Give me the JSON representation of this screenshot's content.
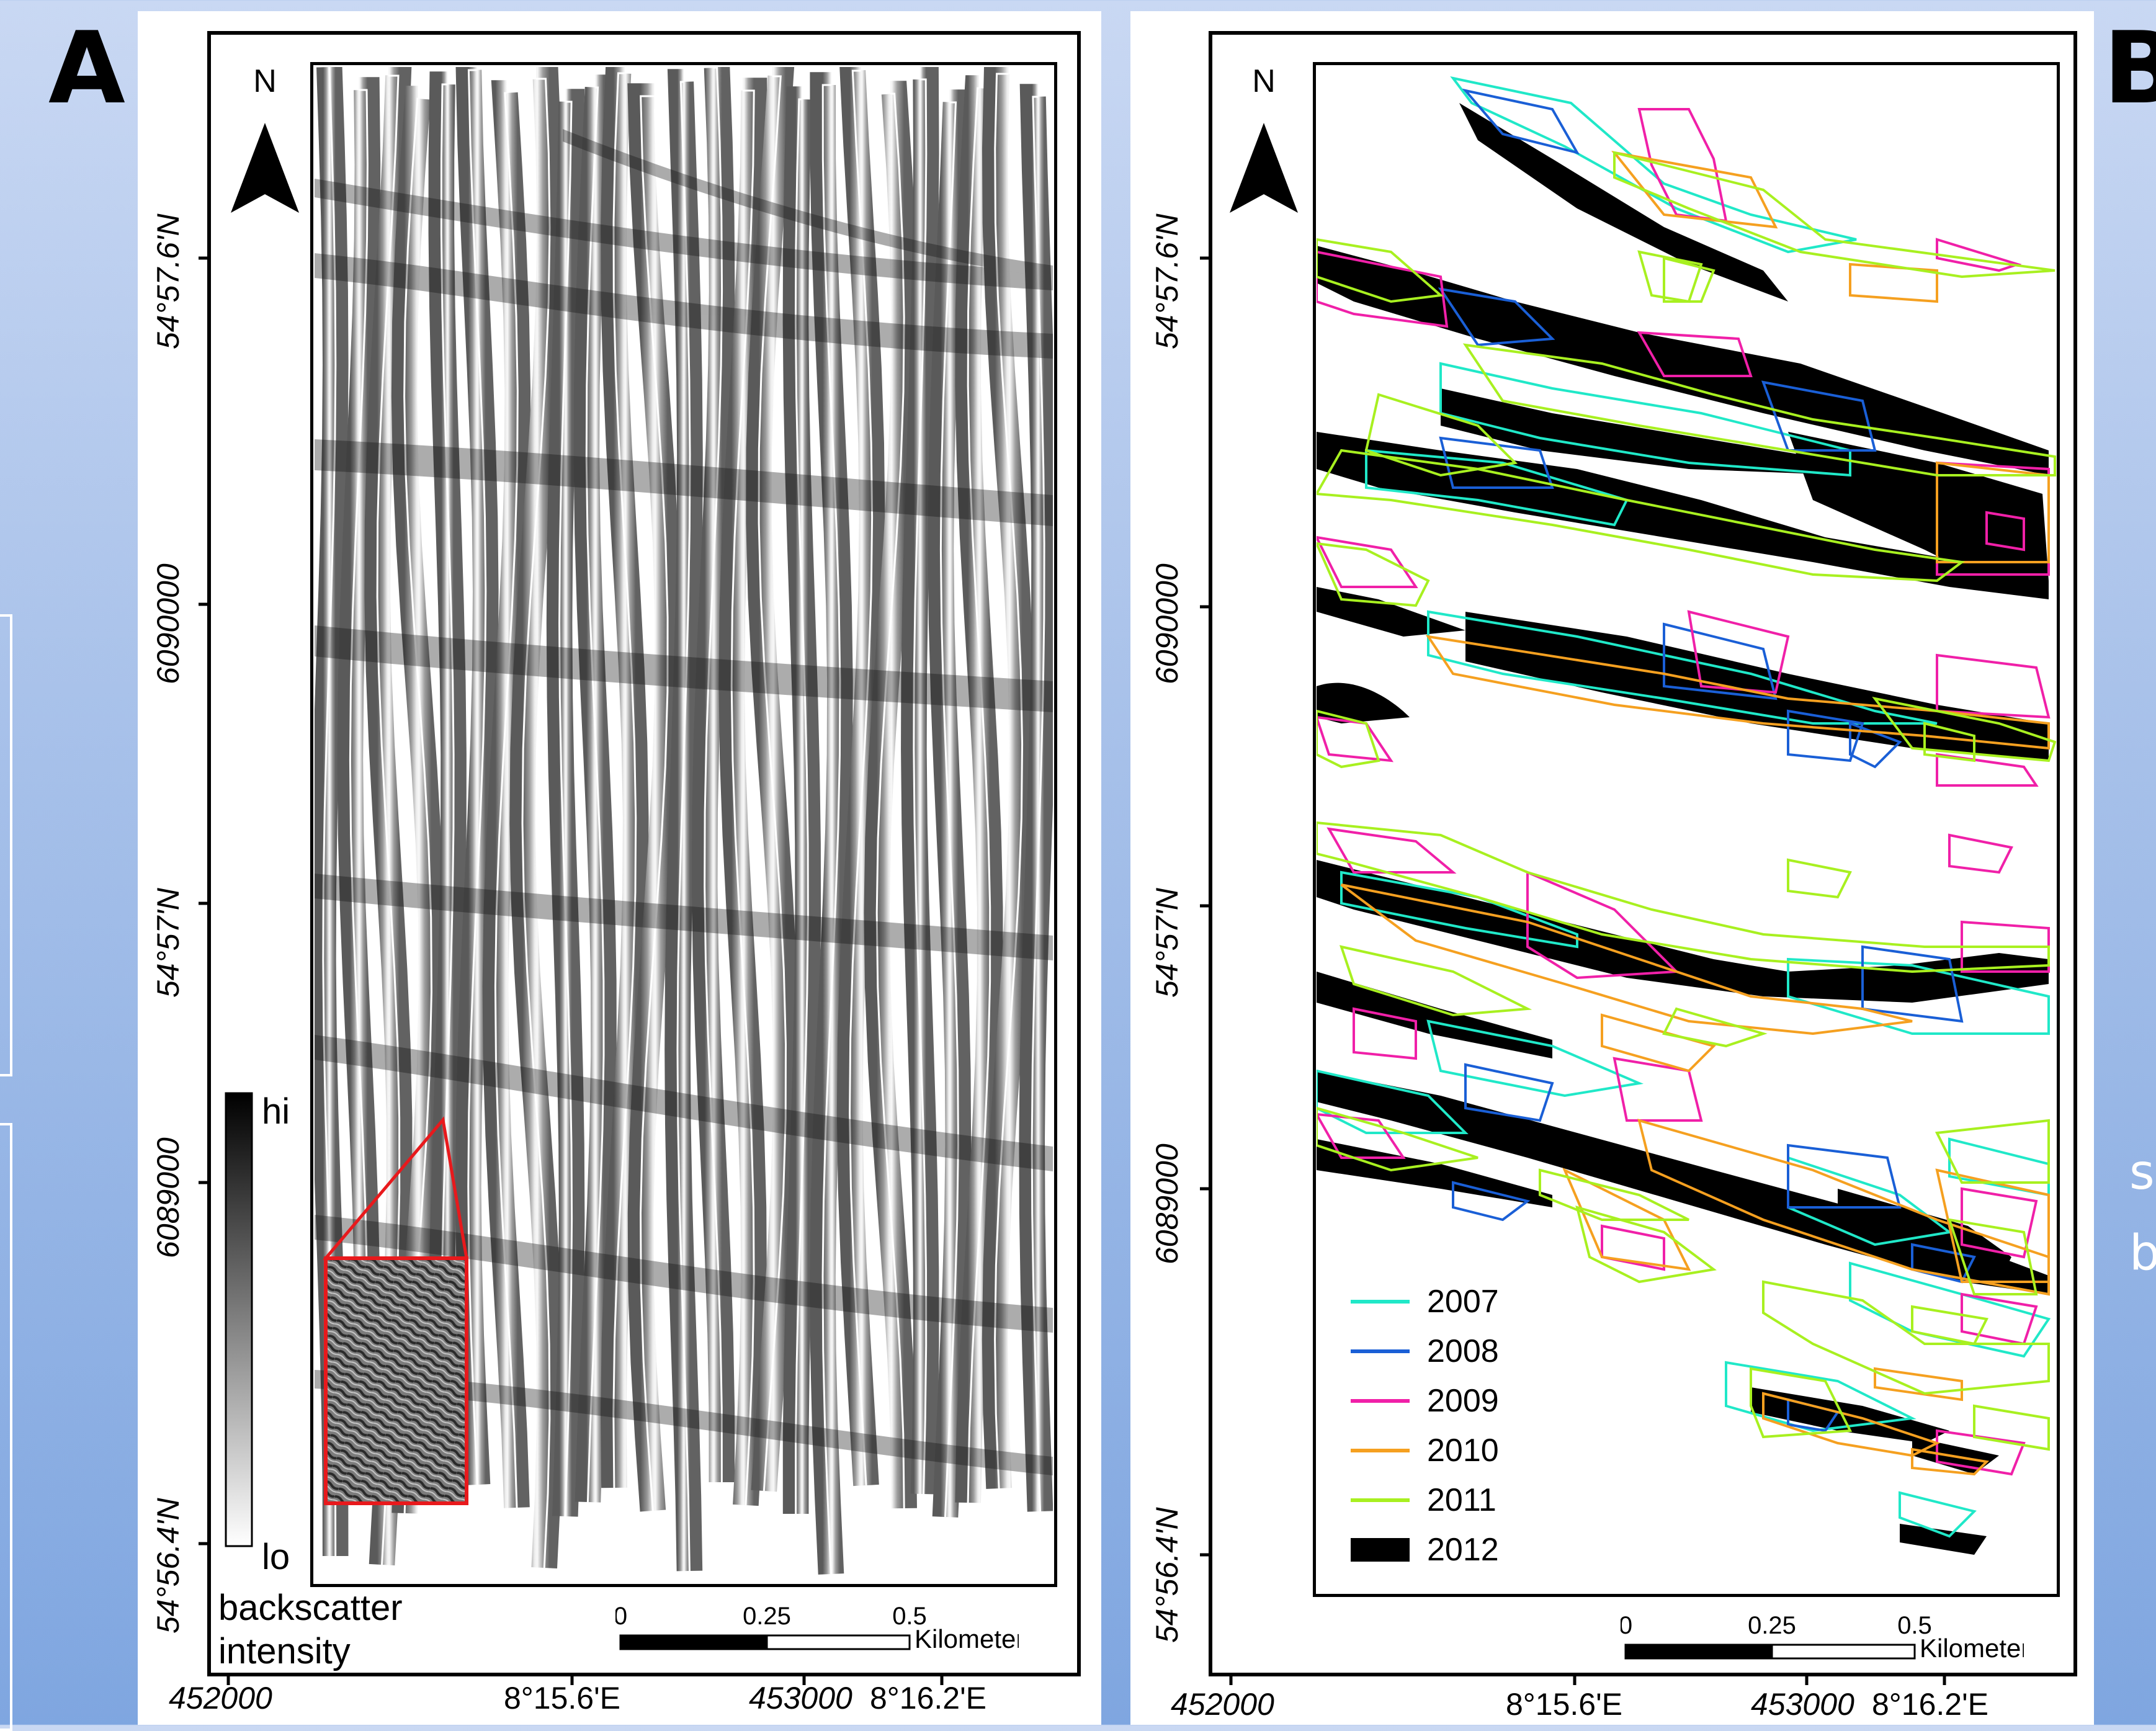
{
  "panels": [
    {
      "letter": "A",
      "north_label": "N",
      "y_labels": [
        "54°57.6'N",
        "6090000",
        "54°57'N",
        "6089000",
        "54°56.4'N"
      ],
      "x_labels": [
        "452000",
        "8°15.6'E",
        "453000",
        "8°16.2'E"
      ],
      "scale": {
        "ticks": [
          "0",
          "0.25",
          "0.5"
        ],
        "unit": "Kilometers"
      },
      "colorbar": {
        "high": "hi",
        "low": "lo",
        "title_line1": "backscatter",
        "title_line2": "intensity"
      },
      "inset_color": "#e8191c"
    },
    {
      "letter": "B",
      "north_label": "N",
      "y_labels": [
        "54°57.6'N",
        "6090000",
        "54°57'N",
        "6089000",
        "54°56.4'N"
      ],
      "x_labels": [
        "452000",
        "8°15.6'E",
        "453000",
        "8°16.2'E"
      ],
      "scale": {
        "ticks": [
          "0",
          "0.25",
          "0.5"
        ],
        "unit": "Kilometers"
      },
      "legend": [
        {
          "year": "2007",
          "color": "#20e8c8"
        },
        {
          "year": "2008",
          "color": "#1a5fd6"
        },
        {
          "year": "2009",
          "color": "#f020a8"
        },
        {
          "year": "2010",
          "color": "#f5a020"
        },
        {
          "year": "2011",
          "color": "#a8f020"
        },
        {
          "year": "2012",
          "color": "#000000"
        }
      ]
    }
  ],
  "side_text": [
    "s",
    "b"
  ]
}
